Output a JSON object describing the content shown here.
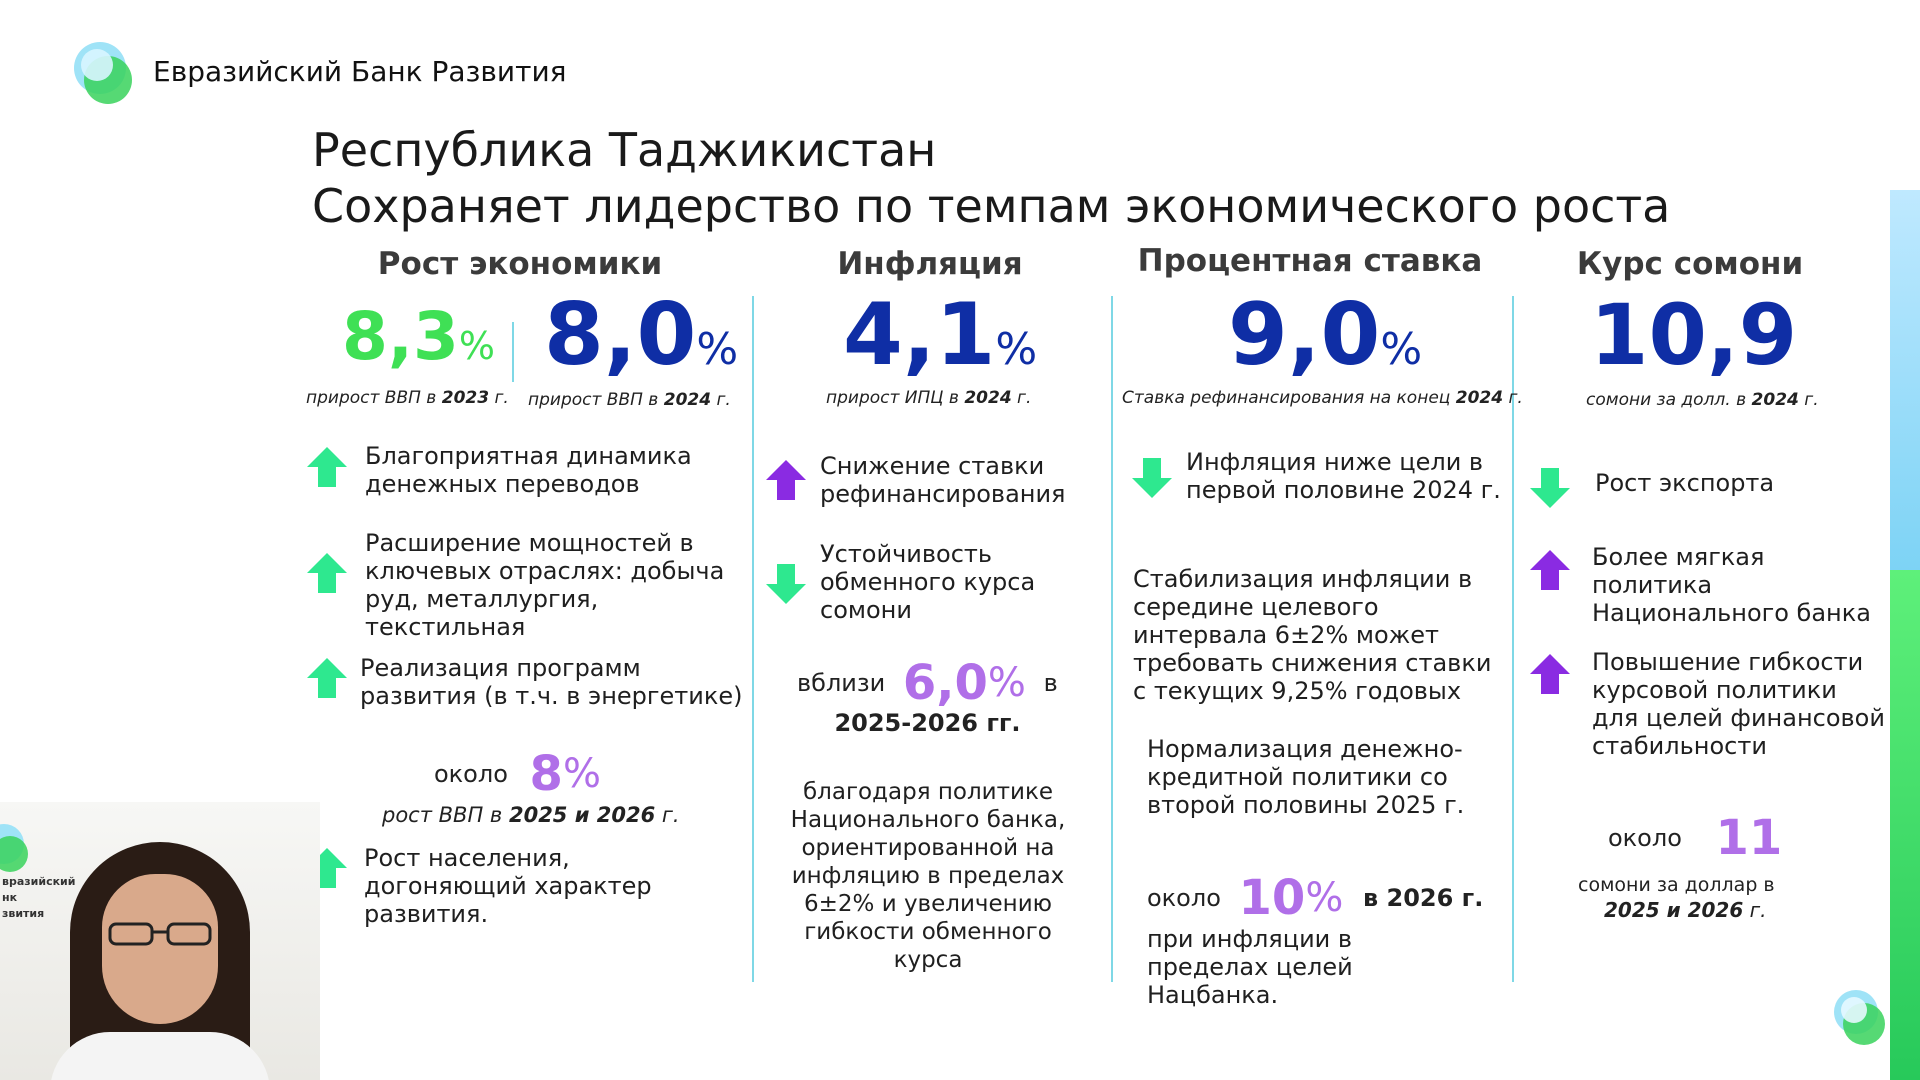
{
  "brand": {
    "name": "Евразийский Банк Развития"
  },
  "title": {
    "line1": "Республика Таджикистан",
    "line2": "Сохраняет лидерство по темпам экономического роста"
  },
  "columns": {
    "growth": {
      "heading": "Рост экономики",
      "value_2023": "8,3",
      "value_2024": "8,0",
      "pct": "%",
      "cap_2023_text": "прирост ВВП в ",
      "cap_2023_year": "2023",
      "cap_2023_suffix": " г.",
      "cap_2024_text": "прирост ВВП в ",
      "cap_2024_year": "2024",
      "cap_2024_suffix": " г.",
      "items": [
        {
          "text": "Благоприятная динамика денежных переводов"
        },
        {
          "text": "Расширение мощностей в ключевых отраслях: добыча руд, металлургия, текстильная"
        },
        {
          "text": "Реализация программ развития (в т.ч. в энергетике)"
        },
        {
          "text": "Рост населения, догоняющий характер развития."
        }
      ],
      "forecast_prefix": "около",
      "forecast_value": "8",
      "forecast_pct": "%",
      "forecast_cap_text": "рост ВВП в ",
      "forecast_cap_years": "2025 и 2026",
      "forecast_cap_suffix": " г."
    },
    "inflation": {
      "heading": "Инфляция",
      "value": "4,1",
      "pct": "%",
      "cap_text": "прирост ИПЦ в ",
      "cap_year": "2024",
      "cap_suffix": " г.",
      "items": [
        {
          "text": "Снижение ставки рефинансирования"
        },
        {
          "text": "Устойчивость обменного курса сомони"
        }
      ],
      "forecast_prefix": "вблизи",
      "forecast_value": "6,0",
      "forecast_pct": "%",
      "forecast_suffix": "в",
      "forecast_years": "2025-2026 гг.",
      "note": "благодаря политике Национального банка, ориентированной на инфляцию в пределах 6±2% и увеличению гибкости обменного курса"
    },
    "rate": {
      "heading": "Процентная ставка",
      "value": "9,0",
      "pct": "%",
      "cap_text": "Ставка рефинансирования на конец ",
      "cap_year": "2024",
      "cap_suffix": " г.",
      "items": [
        {
          "text": "Инфляция ниже цели в первой половине 2024 г."
        }
      ],
      "text_a": "Стабилизация инфляции в середине целевого интервала 6±2% может требовать снижения ставки с текущих 9,25% годовых",
      "text_b": "Нормализация денежно-кредитной политики со второй половины 2025 г.",
      "forecast_prefix": "около",
      "forecast_value": "10",
      "forecast_pct": "%",
      "forecast_year": "в 2026 г.",
      "forecast_note": "при инфляции в пределах целей Нацбанка."
    },
    "fx": {
      "heading": "Курс сомони",
      "value": "10,9",
      "cap_text": "сомони за долл. в ",
      "cap_year": "2024",
      "cap_suffix": " г.",
      "items": [
        {
          "text": "Рост экспорта"
        },
        {
          "text": "Более мягкая политика Национального банка"
        },
        {
          "text": "Повышение гибкости курсовой политики для целей финансовой стабильности"
        }
      ],
      "forecast_prefix": "около",
      "forecast_value": "11",
      "forecast_cap_text": "сомони за доллар  в",
      "forecast_cap_years": "2025 и 2026",
      "forecast_cap_suffix": " г."
    }
  },
  "webcam": {
    "logo_text_1": "вразийский",
    "logo_text_2": "нк",
    "logo_text_3": "звития"
  },
  "colors": {
    "navy": "#0f2ea5",
    "green": "#3fe055",
    "violet": "#b06fe8",
    "arrow_green": "#2ee88f",
    "arrow_violet": "#8a2be2",
    "divider": "#7fd8e6"
  }
}
